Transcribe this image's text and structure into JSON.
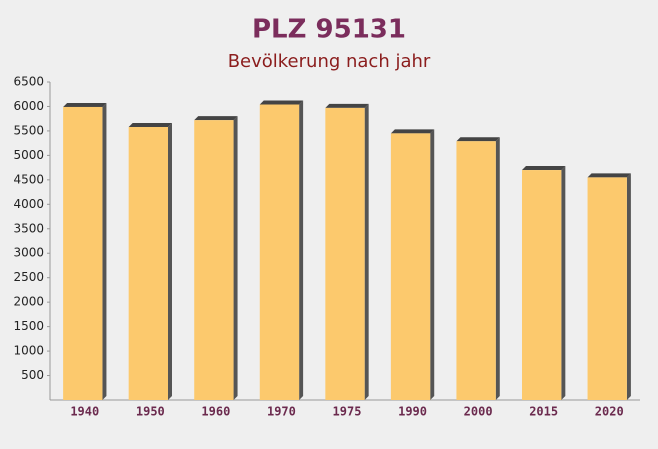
{
  "chart_data": {
    "type": "bar",
    "title": "PLZ 95131",
    "subtitle": "Bevölkerung nach jahr",
    "categories": [
      "1940",
      "1950",
      "1960",
      "1970",
      "1975",
      "1990",
      "2000",
      "2015",
      "2020"
    ],
    "values": [
      5990,
      5580,
      5720,
      6040,
      5970,
      5450,
      5290,
      4700,
      4550
    ],
    "color": "#fcc96d",
    "ylim": [
      0,
      6500
    ],
    "yticks": [
      500,
      1000,
      1500,
      2000,
      2500,
      3000,
      3500,
      4000,
      4500,
      5000,
      5500,
      6000,
      6500
    ]
  }
}
